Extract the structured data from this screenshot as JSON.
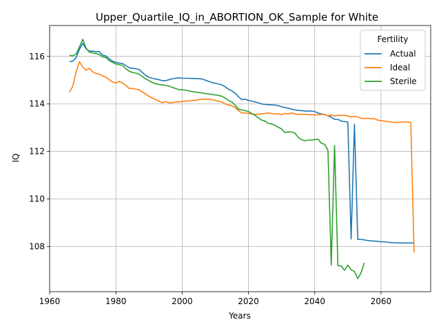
{
  "chart_data": {
    "type": "line",
    "title": "Upper_Quartile_IQ_in_ABORTION_OK_Sample for White",
    "xlabel": "Years",
    "ylabel": "IQ",
    "xlim": [
      1960,
      2075
    ],
    "ylim": [
      106.1,
      117.3
    ],
    "xticks": [
      1960,
      1980,
      2000,
      2020,
      2040,
      2060
    ],
    "yticks": [
      108,
      110,
      112,
      114,
      116
    ],
    "grid": true,
    "legend": {
      "title": "Fertility",
      "placement": "top-right"
    },
    "series": [
      {
        "name": "Actual",
        "color": "#1f77b4",
        "points": [
          [
            1966,
            115.78
          ],
          [
            1967,
            115.8
          ],
          [
            1968,
            115.95
          ],
          [
            1969,
            116.3
          ],
          [
            1970,
            116.55
          ],
          [
            1971,
            116.32
          ],
          [
            1972,
            116.22
          ],
          [
            1973,
            116.22
          ],
          [
            1974,
            116.2
          ],
          [
            1975,
            116.2
          ],
          [
            1976,
            116.05
          ],
          [
            1977,
            116.02
          ],
          [
            1978,
            115.9
          ],
          [
            1979,
            115.8
          ],
          [
            1980,
            115.75
          ],
          [
            1981,
            115.72
          ],
          [
            1982,
            115.7
          ],
          [
            1983,
            115.62
          ],
          [
            1984,
            115.52
          ],
          [
            1985,
            115.5
          ],
          [
            1986,
            115.48
          ],
          [
            1987,
            115.45
          ],
          [
            1988,
            115.32
          ],
          [
            1989,
            115.2
          ],
          [
            1990,
            115.12
          ],
          [
            1991,
            115.08
          ],
          [
            1992,
            115.05
          ],
          [
            1993,
            115.02
          ],
          [
            1994,
            114.98
          ],
          [
            1995,
            114.98
          ],
          [
            1996,
            115.02
          ],
          [
            1997,
            115.06
          ],
          [
            1998,
            115.08
          ],
          [
            1999,
            115.1
          ],
          [
            2000,
            115.08
          ],
          [
            2001,
            115.08
          ],
          [
            2002,
            115.08
          ],
          [
            2003,
            115.07
          ],
          [
            2004,
            115.07
          ],
          [
            2005,
            115.06
          ],
          [
            2006,
            115.05
          ],
          [
            2007,
            115.0
          ],
          [
            2008,
            114.95
          ],
          [
            2009,
            114.9
          ],
          [
            2010,
            114.87
          ],
          [
            2011,
            114.84
          ],
          [
            2012,
            114.8
          ],
          [
            2013,
            114.72
          ],
          [
            2014,
            114.62
          ],
          [
            2015,
            114.55
          ],
          [
            2016,
            114.45
          ],
          [
            2017,
            114.3
          ],
          [
            2018,
            114.18
          ],
          [
            2019,
            114.2
          ],
          [
            2020,
            114.15
          ],
          [
            2021,
            114.12
          ],
          [
            2022,
            114.08
          ],
          [
            2023,
            114.05
          ],
          [
            2024,
            114.0
          ],
          [
            2025,
            113.98
          ],
          [
            2026,
            113.97
          ],
          [
            2027,
            113.96
          ],
          [
            2028,
            113.95
          ],
          [
            2029,
            113.93
          ],
          [
            2030,
            113.88
          ],
          [
            2031,
            113.85
          ],
          [
            2032,
            113.82
          ],
          [
            2033,
            113.78
          ],
          [
            2034,
            113.75
          ],
          [
            2035,
            113.73
          ],
          [
            2036,
            113.72
          ],
          [
            2037,
            113.7
          ],
          [
            2038,
            113.7
          ],
          [
            2039,
            113.7
          ],
          [
            2040,
            113.68
          ],
          [
            2041,
            113.62
          ],
          [
            2042,
            113.58
          ],
          [
            2043,
            113.55
          ],
          [
            2044,
            113.5
          ],
          [
            2045,
            113.45
          ],
          [
            2046,
            113.35
          ],
          [
            2047,
            113.35
          ],
          [
            2048,
            113.28
          ],
          [
            2049,
            113.26
          ],
          [
            2050,
            113.24
          ],
          [
            2051,
            108.32
          ],
          [
            2052,
            113.15
          ],
          [
            2053,
            108.3
          ],
          [
            2054,
            108.3
          ],
          [
            2055,
            108.28
          ],
          [
            2056,
            108.25
          ],
          [
            2057,
            108.24
          ],
          [
            2058,
            108.23
          ],
          [
            2059,
            108.22
          ],
          [
            2060,
            108.2
          ],
          [
            2061,
            108.2
          ],
          [
            2062,
            108.18
          ],
          [
            2063,
            108.17
          ],
          [
            2064,
            108.16
          ],
          [
            2065,
            108.15
          ],
          [
            2066,
            108.15
          ],
          [
            2067,
            108.15
          ],
          [
            2068,
            108.15
          ],
          [
            2069,
            108.15
          ],
          [
            2070,
            108.15
          ]
        ]
      },
      {
        "name": "Ideal",
        "color": "#ff7f0e",
        "points": [
          [
            1966,
            114.48
          ],
          [
            1967,
            114.75
          ],
          [
            1968,
            115.35
          ],
          [
            1969,
            115.78
          ],
          [
            1970,
            115.55
          ],
          [
            1971,
            115.42
          ],
          [
            1972,
            115.5
          ],
          [
            1973,
            115.35
          ],
          [
            1974,
            115.28
          ],
          [
            1975,
            115.25
          ],
          [
            1976,
            115.18
          ],
          [
            1977,
            115.12
          ],
          [
            1978,
            115.02
          ],
          [
            1979,
            114.92
          ],
          [
            1980,
            114.88
          ],
          [
            1981,
            114.95
          ],
          [
            1982,
            114.88
          ],
          [
            1983,
            114.78
          ],
          [
            1984,
            114.65
          ],
          [
            1985,
            114.65
          ],
          [
            1986,
            114.62
          ],
          [
            1987,
            114.6
          ],
          [
            1988,
            114.5
          ],
          [
            1989,
            114.42
          ],
          [
            1990,
            114.32
          ],
          [
            1991,
            114.25
          ],
          [
            1992,
            114.18
          ],
          [
            1993,
            114.12
          ],
          [
            1994,
            114.05
          ],
          [
            1995,
            114.1
          ],
          [
            1996,
            114.05
          ],
          [
            1997,
            114.05
          ],
          [
            1998,
            114.08
          ],
          [
            1999,
            114.08
          ],
          [
            2000,
            114.1
          ],
          [
            2001,
            114.12
          ],
          [
            2002,
            114.12
          ],
          [
            2003,
            114.15
          ],
          [
            2004,
            114.15
          ],
          [
            2005,
            114.18
          ],
          [
            2006,
            114.2
          ],
          [
            2007,
            114.2
          ],
          [
            2008,
            114.2
          ],
          [
            2009,
            114.18
          ],
          [
            2010,
            114.15
          ],
          [
            2011,
            114.12
          ],
          [
            2012,
            114.08
          ],
          [
            2013,
            114.0
          ],
          [
            2014,
            113.95
          ],
          [
            2015,
            113.92
          ],
          [
            2016,
            113.85
          ],
          [
            2017,
            113.72
          ],
          [
            2018,
            113.62
          ],
          [
            2019,
            113.62
          ],
          [
            2020,
            113.6
          ],
          [
            2021,
            113.58
          ],
          [
            2022,
            113.56
          ],
          [
            2023,
            113.57
          ],
          [
            2024,
            113.58
          ],
          [
            2025,
            113.6
          ],
          [
            2026,
            113.62
          ],
          [
            2027,
            113.6
          ],
          [
            2028,
            113.58
          ],
          [
            2029,
            113.58
          ],
          [
            2030,
            113.55
          ],
          [
            2031,
            113.6
          ],
          [
            2032,
            113.58
          ],
          [
            2033,
            113.62
          ],
          [
            2034,
            113.58
          ],
          [
            2035,
            113.56
          ],
          [
            2036,
            113.56
          ],
          [
            2037,
            113.56
          ],
          [
            2038,
            113.56
          ],
          [
            2039,
            113.54
          ],
          [
            2040,
            113.54
          ],
          [
            2041,
            113.54
          ],
          [
            2042,
            113.56
          ],
          [
            2043,
            113.56
          ],
          [
            2044,
            113.5
          ],
          [
            2045,
            113.54
          ],
          [
            2046,
            113.5
          ],
          [
            2047,
            113.52
          ],
          [
            2048,
            113.52
          ],
          [
            2049,
            113.52
          ],
          [
            2050,
            113.5
          ],
          [
            2051,
            113.45
          ],
          [
            2052,
            113.48
          ],
          [
            2053,
            113.45
          ],
          [
            2054,
            113.4
          ],
          [
            2055,
            113.38
          ],
          [
            2056,
            113.4
          ],
          [
            2057,
            113.38
          ],
          [
            2058,
            113.38
          ],
          [
            2059,
            113.32
          ],
          [
            2060,
            113.3
          ],
          [
            2061,
            113.28
          ],
          [
            2062,
            113.26
          ],
          [
            2063,
            113.24
          ],
          [
            2064,
            113.22
          ],
          [
            2065,
            113.22
          ],
          [
            2066,
            113.24
          ],
          [
            2067,
            113.24
          ],
          [
            2068,
            113.24
          ],
          [
            2069,
            113.22
          ],
          [
            2070,
            107.75
          ]
        ]
      },
      {
        "name": "Sterile",
        "color": "#2ca02c",
        "points": [
          [
            1966,
            116.05
          ],
          [
            1967,
            116.02
          ],
          [
            1968,
            116.1
          ],
          [
            1969,
            116.4
          ],
          [
            1970,
            116.72
          ],
          [
            1971,
            116.35
          ],
          [
            1972,
            116.18
          ],
          [
            1973,
            116.15
          ],
          [
            1974,
            116.12
          ],
          [
            1975,
            116.08
          ],
          [
            1976,
            115.98
          ],
          [
            1977,
            115.95
          ],
          [
            1978,
            115.82
          ],
          [
            1979,
            115.75
          ],
          [
            1980,
            115.68
          ],
          [
            1981,
            115.65
          ],
          [
            1982,
            115.62
          ],
          [
            1983,
            115.48
          ],
          [
            1984,
            115.38
          ],
          [
            1985,
            115.32
          ],
          [
            1986,
            115.3
          ],
          [
            1987,
            115.25
          ],
          [
            1988,
            115.15
          ],
          [
            1989,
            115.05
          ],
          [
            1990,
            114.98
          ],
          [
            1991,
            114.9
          ],
          [
            1992,
            114.85
          ],
          [
            1993,
            114.82
          ],
          [
            1994,
            114.8
          ],
          [
            1995,
            114.78
          ],
          [
            1996,
            114.75
          ],
          [
            1997,
            114.7
          ],
          [
            1998,
            114.65
          ],
          [
            1999,
            114.6
          ],
          [
            2000,
            114.6
          ],
          [
            2001,
            114.58
          ],
          [
            2002,
            114.55
          ],
          [
            2003,
            114.52
          ],
          [
            2004,
            114.5
          ],
          [
            2005,
            114.48
          ],
          [
            2006,
            114.46
          ],
          [
            2007,
            114.44
          ],
          [
            2008,
            114.42
          ],
          [
            2009,
            114.4
          ],
          [
            2010,
            114.38
          ],
          [
            2011,
            114.36
          ],
          [
            2012,
            114.32
          ],
          [
            2013,
            114.25
          ],
          [
            2014,
            114.15
          ],
          [
            2015,
            114.08
          ],
          [
            2016,
            113.95
          ],
          [
            2017,
            113.78
          ],
          [
            2018,
            113.75
          ],
          [
            2019,
            113.72
          ],
          [
            2020,
            113.68
          ],
          [
            2021,
            113.6
          ],
          [
            2022,
            113.52
          ],
          [
            2023,
            113.42
          ],
          [
            2024,
            113.32
          ],
          [
            2025,
            113.28
          ],
          [
            2026,
            113.18
          ],
          [
            2027,
            113.16
          ],
          [
            2028,
            113.1
          ],
          [
            2029,
            113.02
          ],
          [
            2030,
            112.95
          ],
          [
            2031,
            112.8
          ],
          [
            2032,
            112.82
          ],
          [
            2033,
            112.82
          ],
          [
            2034,
            112.78
          ],
          [
            2035,
            112.6
          ],
          [
            2036,
            112.5
          ],
          [
            2037,
            112.45
          ],
          [
            2038,
            112.48
          ],
          [
            2039,
            112.48
          ],
          [
            2040,
            112.5
          ],
          [
            2041,
            112.52
          ],
          [
            2042,
            112.35
          ],
          [
            2043,
            112.3
          ],
          [
            2044,
            112.05
          ],
          [
            2045,
            107.22
          ],
          [
            2046,
            112.25
          ],
          [
            2047,
            107.2
          ],
          [
            2048,
            107.18
          ],
          [
            2049,
            107.0
          ],
          [
            2050,
            107.22
          ],
          [
            2051,
            107.02
          ],
          [
            2052,
            106.95
          ],
          [
            2053,
            106.65
          ],
          [
            2054,
            106.9
          ],
          [
            2055,
            107.32
          ]
        ]
      }
    ]
  }
}
